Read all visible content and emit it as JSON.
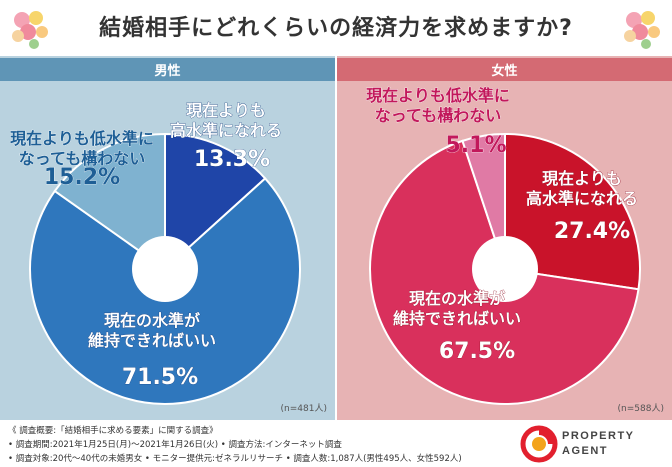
{
  "header": {
    "title": "結婚相手にどれくらいの経済力を求めますか?"
  },
  "chart_data": [
    {
      "type": "pie",
      "group": "男性",
      "sample": "(n=481人)",
      "slices": [
        {
          "label": "現在よりも高水準になれる",
          "label_lines": [
            "現在よりも",
            "高水準になれる"
          ],
          "value": 13.3,
          "value_text": "13.3%",
          "color": "#1f45a8"
        },
        {
          "label": "現在の水準が維持できればいい",
          "label_lines": [
            "現在の水準が",
            "維持できればいい"
          ],
          "value": 71.5,
          "value_text": "71.5%",
          "color": "#2f77bd"
        },
        {
          "label": "現在よりも低水準になっても構わない",
          "label_lines": [
            "現在よりも低水準に",
            "なっても構わない"
          ],
          "value": 15.2,
          "value_text": "15.2%",
          "color": "#7fb2d0"
        }
      ]
    },
    {
      "type": "pie",
      "group": "女性",
      "sample": "(n=588人)",
      "slices": [
        {
          "label": "現在よりも高水準になれる",
          "label_lines": [
            "現在よりも",
            "高水準になれる"
          ],
          "value": 27.4,
          "value_text": "27.4%",
          "color": "#c9132a"
        },
        {
          "label": "現在の水準が維持できればいい",
          "label_lines": [
            "現在の水準が",
            "維持できればいい"
          ],
          "value": 67.5,
          "value_text": "67.5%",
          "color": "#d9305c"
        },
        {
          "label": "現在よりも低水準になっても構わない",
          "label_lines": [
            "現在よりも低水準に",
            "なっても構わない"
          ],
          "value": 5.1,
          "value_text": "5.1%",
          "color": "#e07aa5"
        }
      ]
    }
  ],
  "footer": {
    "line1": "《 調査概要:「結婚相手に求める要素」に関する調査》",
    "line2": "• 調査期間:2021年1月25日(月)〜2021年1月26日(火)  • 調査方法:インターネット調査",
    "line3": "• 調査対象:20代〜40代の未婚男女  • モニター提供元:ゼネラルリサーチ  • 調査人数:1,087人(男性495人、女性592人)"
  },
  "logo": {
    "line1": "PROPERTY",
    "line2": "AGENT"
  }
}
